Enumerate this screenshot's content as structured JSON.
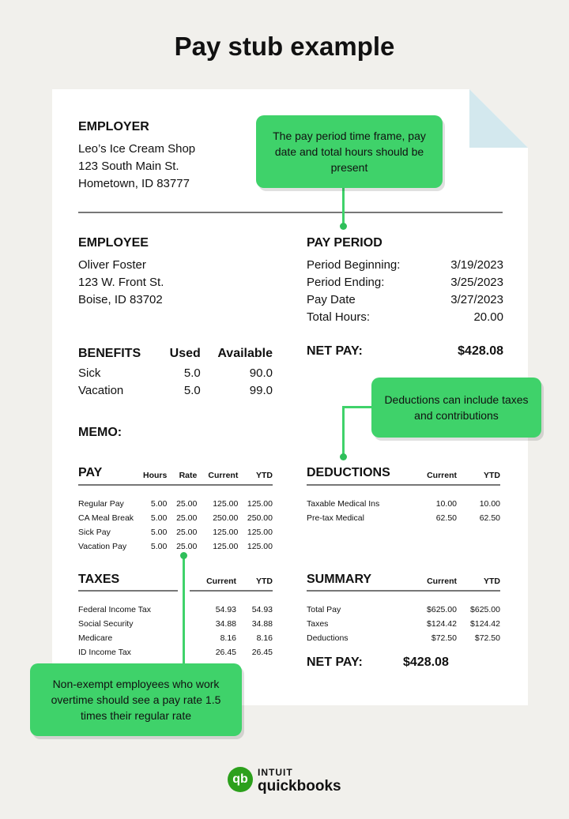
{
  "title": "Pay stub example",
  "employer": {
    "heading": "EMPLOYER",
    "lines": [
      "Leo’s Ice Cream Shop",
      "123 South Main St.",
      "Hometown, ID 83777"
    ]
  },
  "employee": {
    "heading": "EMPLOYEE",
    "lines": [
      "Oliver Foster",
      "123 W. Front St.",
      "Boise, ID 83702"
    ]
  },
  "pay_period": {
    "heading": "PAY PERIOD",
    "rows": [
      [
        "Period Beginning:",
        "3/19/2023"
      ],
      [
        "Period Ending:",
        "3/25/2023"
      ],
      [
        "Pay Date",
        "3/27/2023"
      ],
      [
        "Total Hours:",
        "20.00"
      ]
    ]
  },
  "net_pay": {
    "label": "NET PAY:",
    "value": "$428.08"
  },
  "benefits": {
    "headers": [
      "BENEFITS",
      "Used",
      "Available"
    ],
    "rows": [
      [
        "Sick",
        "5.0",
        "90.0"
      ],
      [
        "Vacation",
        "5.0",
        "99.0"
      ]
    ]
  },
  "memo": "MEMO:",
  "pay": {
    "headers": [
      "PAY",
      "Hours",
      "Rate",
      "Current",
      "YTD"
    ],
    "rows": [
      [
        "Regular Pay",
        "5.00",
        "25.00",
        "125.00",
        "125.00"
      ],
      [
        "CA Meal Break",
        "5.00",
        "25.00",
        "250.00",
        "250.00"
      ],
      [
        "Sick Pay",
        "5.00",
        "25.00",
        "125.00",
        "125.00"
      ],
      [
        "Vacation Pay",
        "5.00",
        "25.00",
        "125.00",
        "125.00"
      ]
    ]
  },
  "taxes": {
    "headers": [
      "TAXES",
      "Current",
      "YTD"
    ],
    "rows": [
      [
        "Federal Income Tax",
        "54.93",
        "54.93"
      ],
      [
        "Social Security",
        "34.88",
        "34.88"
      ],
      [
        "Medicare",
        "8.16",
        "8.16"
      ],
      [
        "ID Income Tax",
        "26.45",
        "26.45"
      ]
    ]
  },
  "deductions": {
    "headers": [
      "DEDUCTIONS",
      "Current",
      "YTD"
    ],
    "rows": [
      [
        "Taxable Medical Ins",
        "10.00",
        "10.00"
      ],
      [
        "Pre-tax Medical",
        "62.50",
        "62.50"
      ]
    ]
  },
  "summary": {
    "headers": [
      "SUMMARY",
      "Current",
      "YTD"
    ],
    "rows": [
      [
        "Total Pay",
        "$625.00",
        "$625.00"
      ],
      [
        "Taxes",
        "$124.42",
        "$124.42"
      ],
      [
        "Deductions",
        "$72.50",
        "$72.50"
      ]
    ]
  },
  "callouts": {
    "pay_period": "The pay period time frame, pay date and total hours should be present",
    "deductions": "Deductions can include taxes and contributions",
    "overtime": "Non-exempt employees who work overtime should see a pay rate 1.5 times their regular rate"
  },
  "logo": {
    "brand_top": "INTUIT",
    "brand_bottom": "quickbooks",
    "mark": "qb"
  },
  "colors": {
    "accent": "#3fd26a",
    "background": "#f1f0ec",
    "fold": "#d3e8ee"
  }
}
